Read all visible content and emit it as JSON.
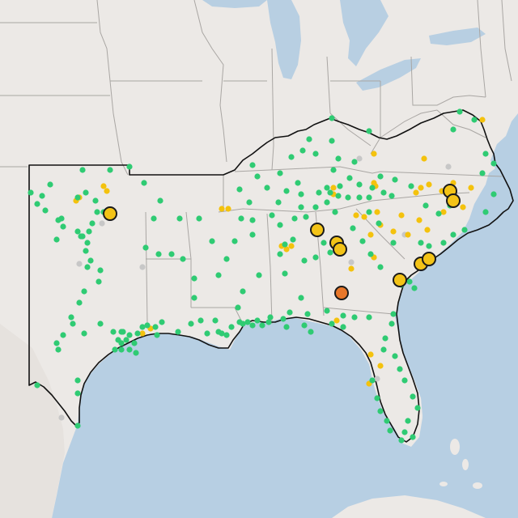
{
  "map": {
    "colors": {
      "land": "#ece9e6",
      "land_alt": "#e6e2de",
      "water": "#b7cfe3",
      "lakes": "#b8cfe2",
      "state_border": "#a9a6a3",
      "region_outline": "#111111",
      "dot_green": "#2fcb73",
      "dot_yellow": "#f4c20d",
      "dot_gray": "#c7c7c7",
      "marker_yellow": "#f3c317",
      "marker_orange": "#e8772a",
      "marker_stroke": "#1a1a1a"
    },
    "legend": "",
    "note": ""
  }
}
